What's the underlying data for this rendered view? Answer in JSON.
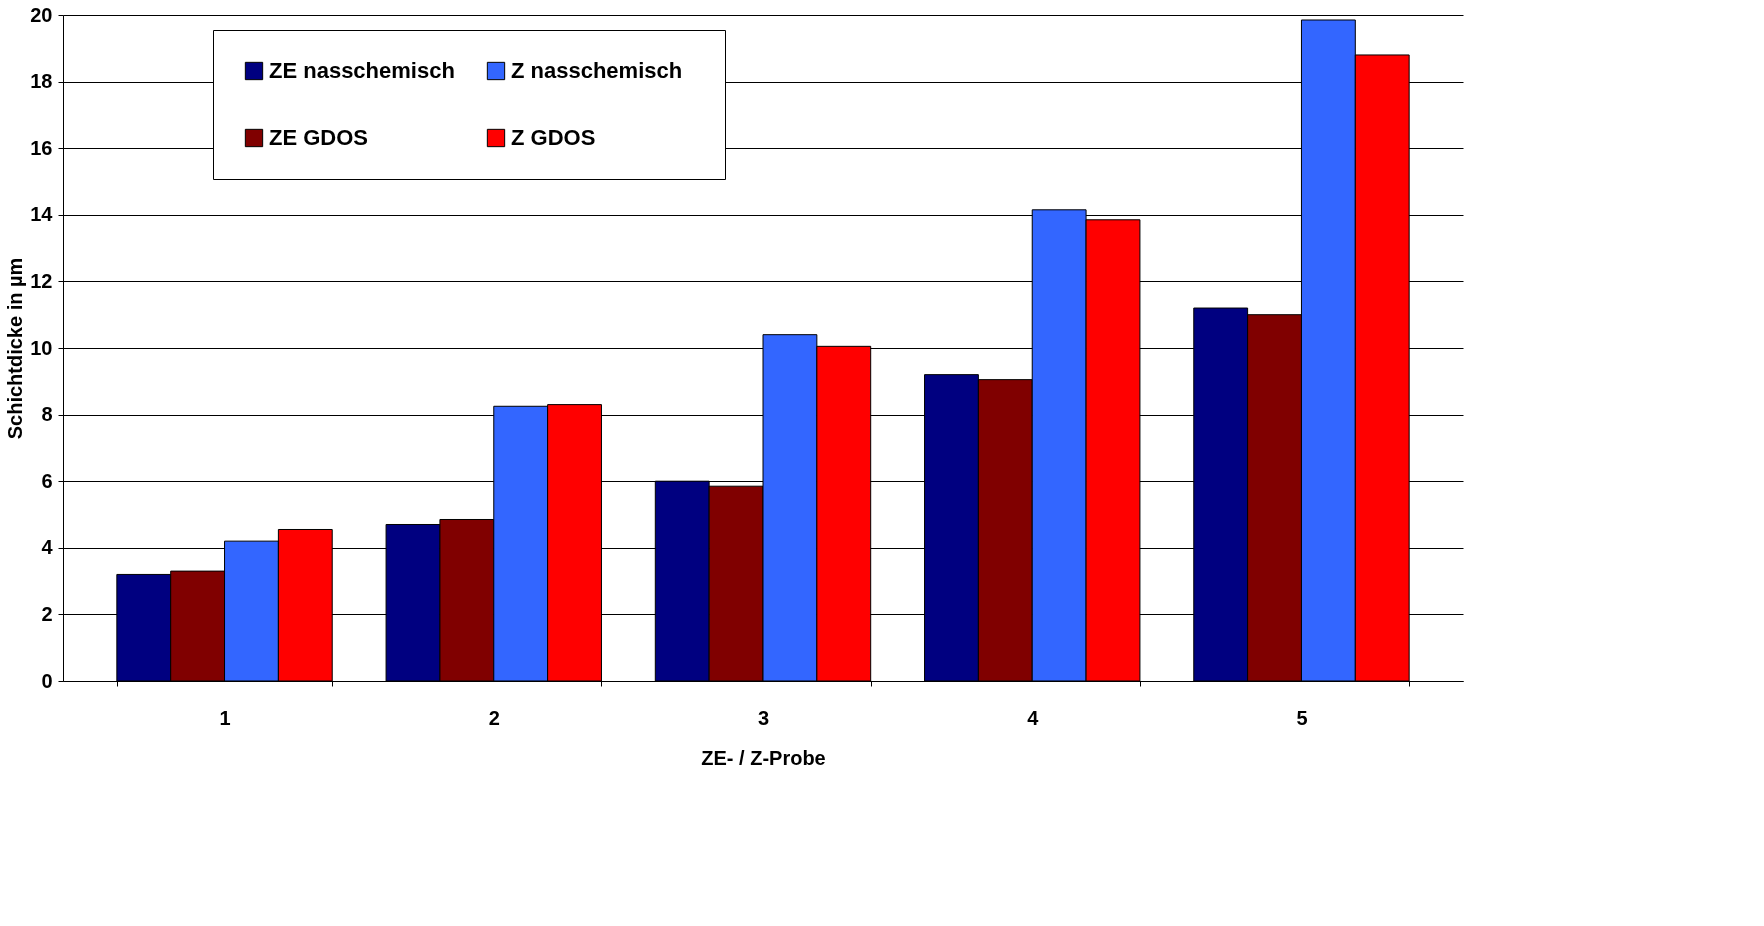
{
  "chart_data": {
    "type": "bar",
    "xlabel": "ZE-  / Z-Probe",
    "ylabel": "Schichtdicke in µm",
    "categories": [
      "1",
      "2",
      "3",
      "4",
      "5"
    ],
    "series": [
      {
        "name": "ZE nasschemisch",
        "color": "#000080",
        "values": [
          3.2,
          4.7,
          6.0,
          9.2,
          11.2
        ]
      },
      {
        "name": "ZE GDOS",
        "color": "#800000",
        "values": [
          3.3,
          4.85,
          5.85,
          9.05,
          11.0
        ]
      },
      {
        "name": "Z   nasschemisch",
        "color": "#3366ff",
        "values": [
          4.2,
          8.25,
          10.4,
          14.15,
          19.85
        ]
      },
      {
        "name": "Z   GDOS",
        "color": "#ff0000",
        "values": [
          4.55,
          8.3,
          10.05,
          13.85,
          18.8
        ]
      }
    ],
    "ylim": [
      0,
      20
    ],
    "yticks": [
      0,
      2,
      4,
      6,
      8,
      10,
      12,
      14,
      16,
      18,
      20
    ],
    "grid": "y",
    "legend": "top left"
  }
}
